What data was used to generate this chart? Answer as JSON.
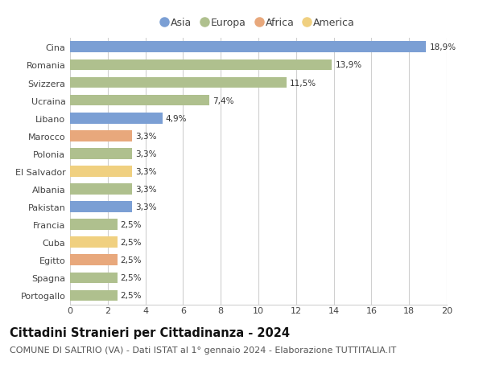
{
  "countries": [
    "Cina",
    "Romania",
    "Svizzera",
    "Ucraina",
    "Libano",
    "Marocco",
    "Polonia",
    "El Salvador",
    "Albania",
    "Pakistan",
    "Francia",
    "Cuba",
    "Egitto",
    "Spagna",
    "Portogallo"
  ],
  "values": [
    18.9,
    13.9,
    11.5,
    7.4,
    4.9,
    3.3,
    3.3,
    3.3,
    3.3,
    3.3,
    2.5,
    2.5,
    2.5,
    2.5,
    2.5
  ],
  "labels": [
    "18,9%",
    "13,9%",
    "11,5%",
    "7,4%",
    "4,9%",
    "3,3%",
    "3,3%",
    "3,3%",
    "3,3%",
    "3,3%",
    "2,5%",
    "2,5%",
    "2,5%",
    "2,5%",
    "2,5%"
  ],
  "continents": [
    "Asia",
    "Europa",
    "Europa",
    "Europa",
    "Asia",
    "Africa",
    "Europa",
    "America",
    "Europa",
    "Asia",
    "Europa",
    "America",
    "Africa",
    "Europa",
    "Europa"
  ],
  "continent_colors": {
    "Asia": "#7b9fd4",
    "Europa": "#afc08e",
    "Africa": "#e8a87c",
    "America": "#f0d080"
  },
  "legend_order": [
    "Asia",
    "Europa",
    "Africa",
    "America"
  ],
  "xlim": [
    0,
    20
  ],
  "xticks": [
    0,
    2,
    4,
    6,
    8,
    10,
    12,
    14,
    16,
    18,
    20
  ],
  "title": "Cittadini Stranieri per Cittadinanza - 2024",
  "subtitle": "COMUNE DI SALTRIO (VA) - Dati ISTAT al 1° gennaio 2024 - Elaborazione TUTTITALIA.IT",
  "title_fontsize": 10.5,
  "subtitle_fontsize": 8,
  "bar_height": 0.62,
  "background_color": "#ffffff",
  "grid_color": "#d0d0d0",
  "label_fontsize": 7.5,
  "ytick_fontsize": 8,
  "xtick_fontsize": 8
}
